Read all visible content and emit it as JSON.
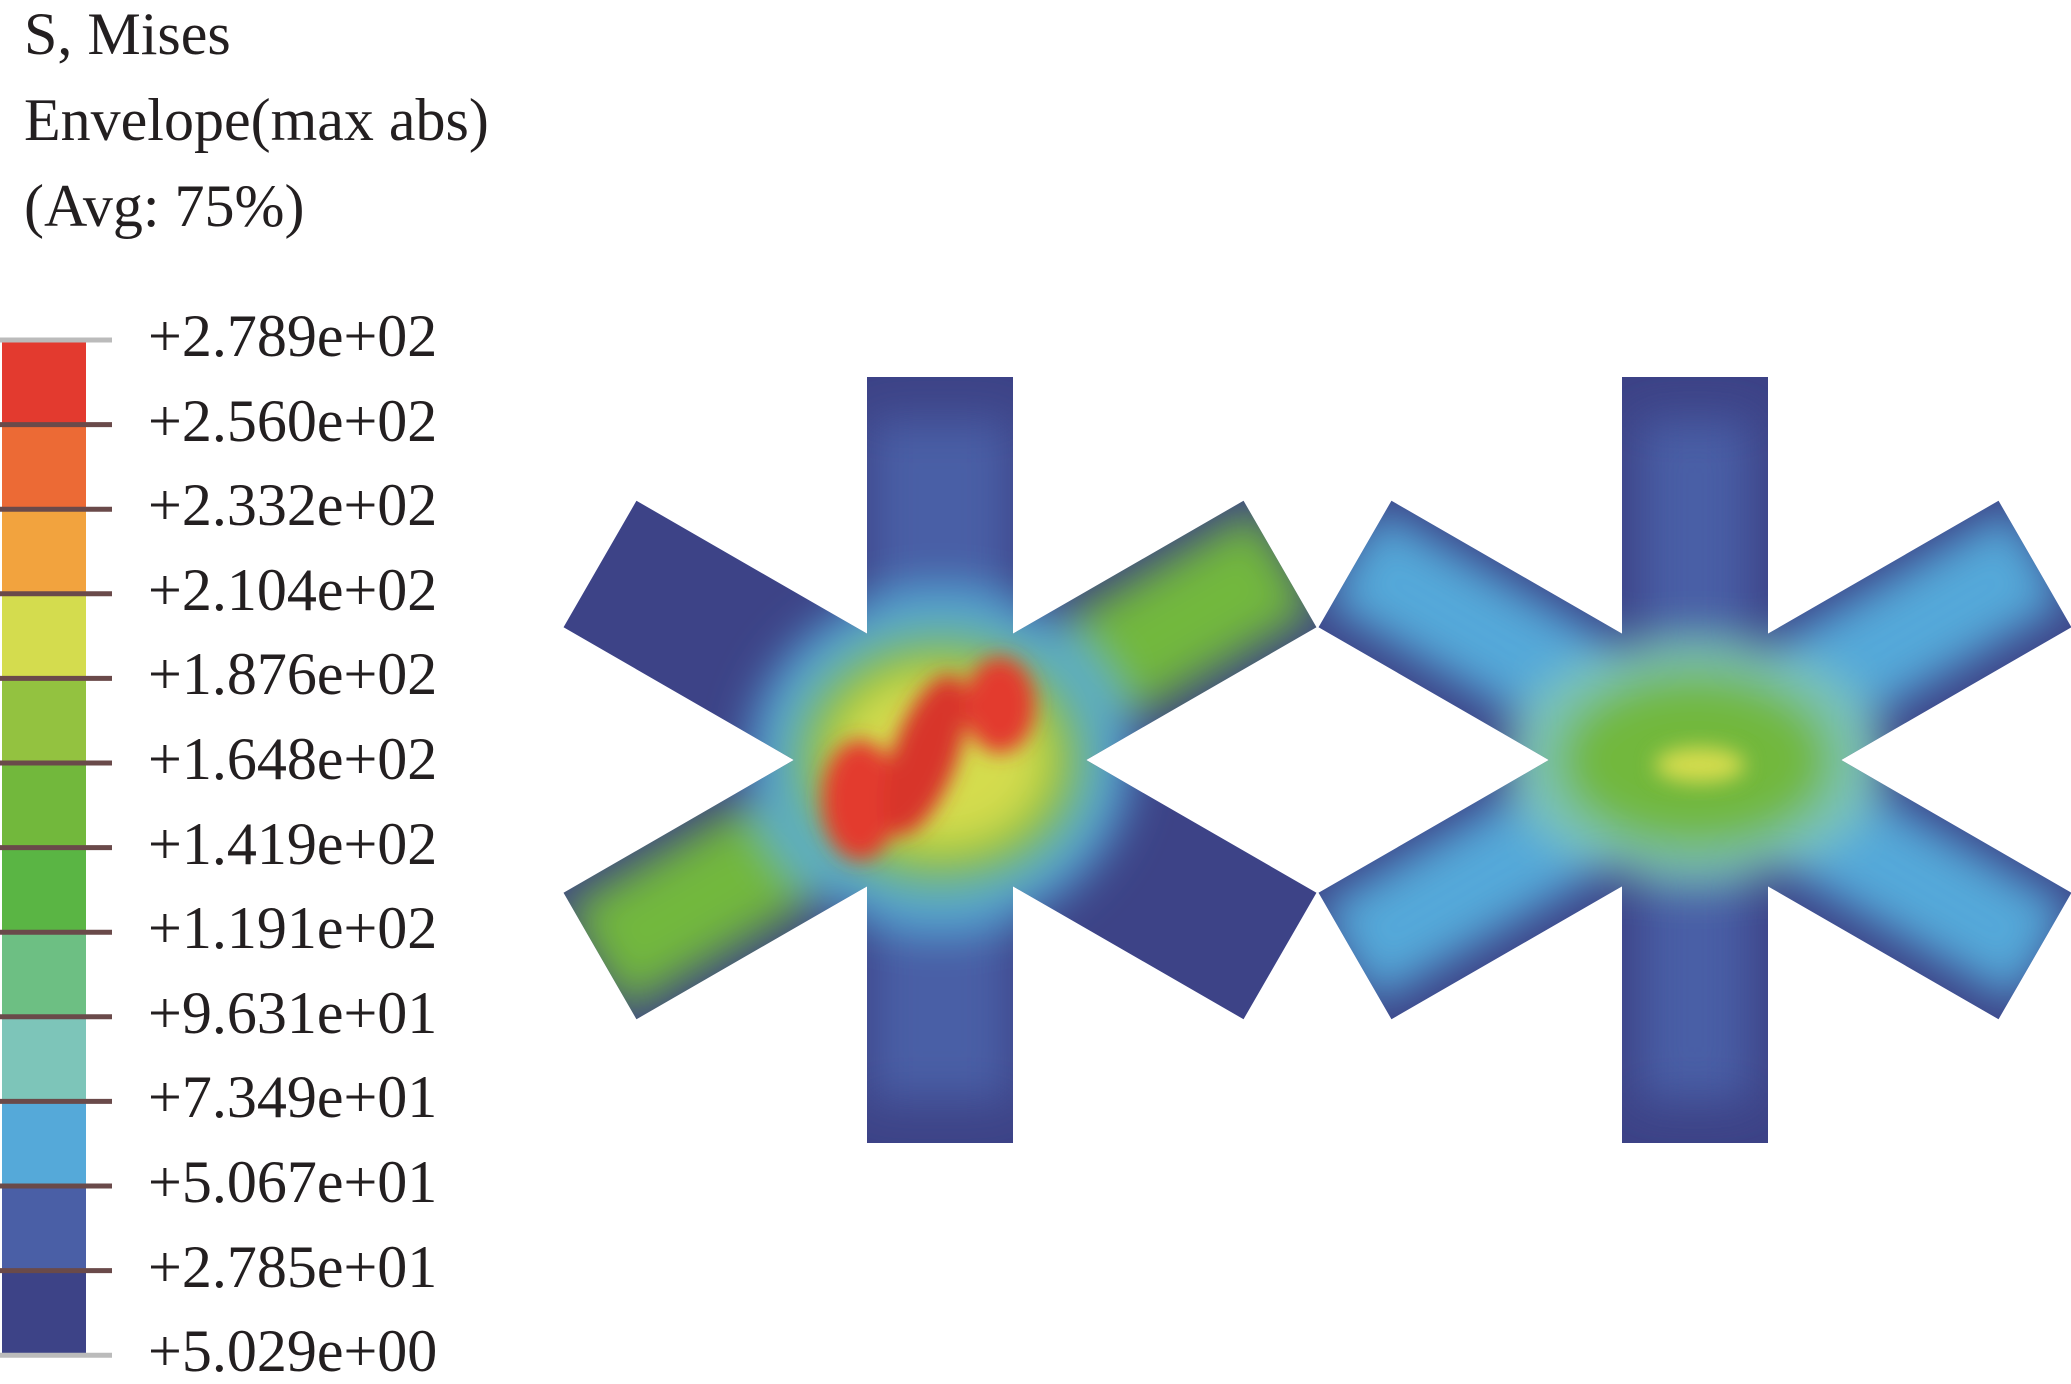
{
  "legend": {
    "title_lines": [
      "S, Mises",
      "Envelope(max abs)",
      "(Avg: 75%)"
    ],
    "levels": [
      "+2.789e+02",
      "+2.560e+02",
      "+2.332e+02",
      "+2.104e+02",
      "+1.876e+02",
      "+1.648e+02",
      "+1.419e+02",
      "+1.191e+02",
      "+9.631e+01",
      "+7.349e+01",
      "+5.067e+01",
      "+2.785e+01",
      "+5.029e+00"
    ],
    "colors": [
      "#e33a2f",
      "#ec6a35",
      "#f2a33e",
      "#d4dc4e",
      "#93c240",
      "#72b83c",
      "#5ab544",
      "#6dbf83",
      "#7dc5b9",
      "#55a9d9",
      "#4a5fa6",
      "#3d4387"
    ]
  },
  "models": [
    {
      "name": "left-lattice",
      "peak_color": "#e33a2f",
      "arm_color": "#72b83c"
    },
    {
      "name": "right-lattice",
      "peak_color": "#d4dc4e",
      "arm_color": "#55a9d9"
    }
  ]
}
